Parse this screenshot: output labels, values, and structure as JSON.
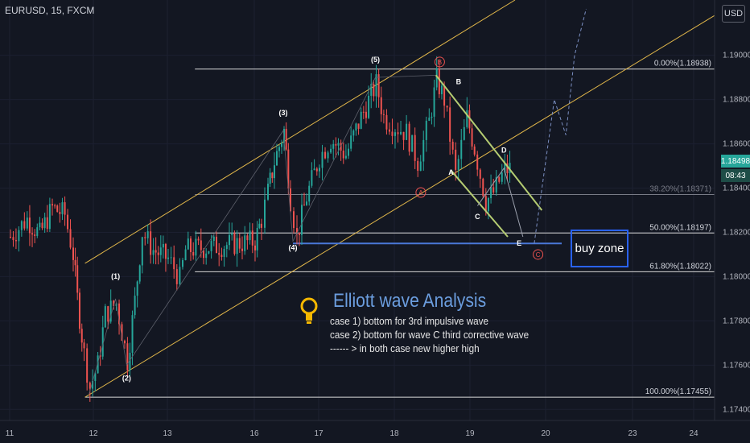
{
  "header": {
    "symbol": "EURUSD, 15, FXCM",
    "currency_button": "USD"
  },
  "price_tags": {
    "last_price": "1.18498",
    "countdown": "08:43"
  },
  "analysis": {
    "title": "Elliott wave Analysis",
    "lines": [
      "case 1) bottom for 3rd impulsive wave",
      "case 2) bottom for wave C third corrective wave",
      "------ >  in both case new higher high"
    ]
  },
  "buy_zone_label": "buy zone",
  "colors": {
    "up": "#26a69a",
    "down": "#ef5350",
    "channel": "#e0b64a",
    "fib": "#ffffff",
    "support": "#4a78d8",
    "correction": "#b5cc72",
    "label_red": "#ef5350"
  },
  "chart_data": {
    "type": "candlestick",
    "y_axis": {
      "range": [
        1.1735,
        1.1925
      ],
      "ticks": [
        "1.17400",
        "1.17600",
        "1.17800",
        "1.18000",
        "1.18200",
        "1.18400",
        "1.18600",
        "1.18800",
        "1.19000"
      ]
    },
    "x_axis": {
      "range_days": [
        11.0,
        24.6
      ],
      "ticks": [
        "11",
        "12",
        "13",
        "16",
        "17",
        "18",
        "19",
        "20",
        "23",
        "24"
      ]
    },
    "fib_levels": [
      {
        "label": "0.00%(1.18938)",
        "value": 1.18938
      },
      {
        "label": "38.20%(1.18371)",
        "value": 1.18371
      },
      {
        "label": "50.00%(1.18197)",
        "value": 1.18197
      },
      {
        "label": "61.80%(1.18022)",
        "value": 1.18022
      },
      {
        "label": "100.00%(1.17455)",
        "value": 1.17455
      }
    ],
    "wave_labels": [
      {
        "text": "(1)",
        "x": 12.3,
        "y": 1.1799
      },
      {
        "text": "(2)",
        "x": 12.45,
        "y": 1.1753
      },
      {
        "text": "(3)",
        "x": 16.45,
        "y": 1.1873
      },
      {
        "text": "(4)",
        "x": 16.6,
        "y": 1.1812
      },
      {
        "text": "(5)",
        "x": 17.75,
        "y": 1.1897
      },
      {
        "text": "B",
        "x": 18.85,
        "y": 1.1887
      },
      {
        "text": "A",
        "x": 18.75,
        "y": 1.1846
      },
      {
        "text": "C",
        "x": 19.1,
        "y": 1.1826
      },
      {
        "text": "D",
        "x": 19.45,
        "y": 1.1856
      },
      {
        "text": "E",
        "x": 19.65,
        "y": 1.1814
      }
    ],
    "circled_labels": [
      {
        "text": "B",
        "x": 18.6,
        "y": 1.1897
      },
      {
        "text": "A",
        "x": 18.35,
        "y": 1.1838
      },
      {
        "text": "C",
        "x": 19.9,
        "y": 1.181
      }
    ],
    "candles_anchor": [
      [
        11.0,
        1.1818
      ],
      [
        11.2,
        1.1826
      ],
      [
        11.35,
        1.1819
      ],
      [
        11.5,
        1.1831
      ],
      [
        11.65,
        1.1828
      ],
      [
        11.75,
        1.181
      ],
      [
        11.8,
        1.179
      ],
      [
        11.88,
        1.1765
      ],
      [
        11.95,
        1.175
      ],
      [
        12.05,
        1.176
      ],
      [
        12.15,
        1.1783
      ],
      [
        12.3,
        1.1788
      ],
      [
        12.45,
        1.1762
      ],
      [
        12.55,
        1.1789
      ],
      [
        12.65,
        1.182
      ],
      [
        12.8,
        1.1812
      ],
      [
        13.0,
        1.1808
      ],
      [
        13.2,
        1.1804
      ],
      [
        13.4,
        1.1799
      ],
      [
        13.6,
        1.1812
      ],
      [
        16.0,
        1.1816
      ],
      [
        16.1,
        1.1826
      ],
      [
        16.2,
        1.1838
      ],
      [
        16.3,
        1.1852
      ],
      [
        16.45,
        1.1866
      ],
      [
        16.55,
        1.1835
      ],
      [
        16.65,
        1.1818
      ],
      [
        16.8,
        1.1836
      ],
      [
        17.0,
        1.1854
      ],
      [
        17.15,
        1.1862
      ],
      [
        17.35,
        1.1855
      ],
      [
        17.55,
        1.1872
      ],
      [
        17.75,
        1.1887
      ],
      [
        17.85,
        1.1872
      ],
      [
        18.0,
        1.1868
      ],
      [
        18.15,
        1.1865
      ],
      [
        18.3,
        1.1852
      ],
      [
        18.45,
        1.187
      ],
      [
        18.55,
        1.1889
      ],
      [
        18.65,
        1.188
      ],
      [
        18.8,
        1.1846
      ],
      [
        18.95,
        1.1872
      ],
      [
        19.05,
        1.1858
      ],
      [
        19.2,
        1.1834
      ],
      [
        19.3,
        1.1838
      ],
      [
        19.45,
        1.1848
      ],
      [
        19.55,
        1.1849
      ]
    ],
    "projection": [
      [
        19.85,
        1.1815
      ],
      [
        20.3,
        1.188
      ],
      [
        20.7,
        1.1864
      ],
      [
        21.0,
        1.19
      ],
      [
        21.4,
        1.1921
      ]
    ]
  }
}
